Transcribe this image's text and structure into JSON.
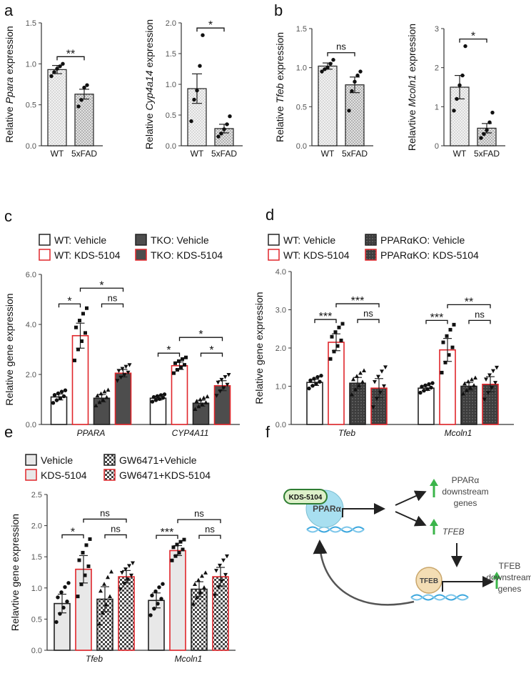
{
  "colors": {
    "red": "#e0262b",
    "green": "#3bb54a",
    "dark": "#4d4d4d",
    "light": "#ececec",
    "white": "#ffffff",
    "dna": "#3aa6dd",
    "tfeb": "#f3ddb4",
    "ppar": "#a8dff0"
  },
  "panels": {
    "a": {
      "label": "a"
    },
    "b": {
      "label": "b"
    },
    "c": {
      "label": "c"
    },
    "d": {
      "label": "d"
    },
    "e": {
      "label": "e"
    },
    "f": {
      "label": "f"
    }
  },
  "legend_c": {
    "items": [
      "WT: Vehicle",
      "TKO: Vehicle",
      "WT: KDS-5104",
      "TKO: KDS-5104"
    ]
  },
  "legend_d": {
    "items": [
      "WT: Vehicle",
      "PPARαKO: Vehicle",
      "WT: KDS-5104",
      "PPARαKO: KDS-5104"
    ]
  },
  "legend_e": {
    "items": [
      "Vehicle",
      "GW6471+Vehicle",
      "KDS-5104",
      "GW6471+KDS-5104"
    ]
  },
  "diagram": {
    "drug_label": "KDS-5104",
    "ppar_label": "PPARα",
    "ppar_targets": "PPARα downstream genes",
    "tfeb_gene": "TFEB",
    "tfeb_label": "TFEB",
    "tfeb_targets": "TFEB downstream genes"
  },
  "chart_data": [
    {
      "id": "a1",
      "type": "bar",
      "panel": "a",
      "ylabel": "Relative Ppara expression",
      "ylabel_prefix": "Relative ",
      "ylabel_gene": "Ppara",
      "ylabel_suffix": " expression",
      "ylim": [
        0,
        1.5
      ],
      "yticks": [
        "0.0",
        "0.5",
        "1.0",
        "1.5"
      ],
      "categories": [
        "WT",
        "5xFAD"
      ],
      "series": [
        {
          "category": "WT",
          "value": 0.93,
          "sem": 0.05,
          "points": [
            0.85,
            0.9,
            0.94,
            0.97,
            1.0
          ]
        },
        {
          "category": "5xFAD",
          "value": 0.63,
          "sem": 0.06,
          "points": [
            0.48,
            0.56,
            0.71,
            0.74
          ]
        }
      ],
      "significance": [
        {
          "groups": [
            0,
            1
          ],
          "label": "**"
        }
      ]
    },
    {
      "id": "a2",
      "type": "bar",
      "panel": "a",
      "ylabel": "Relative Cyp4a14 expression",
      "ylabel_prefix": "Relative ",
      "ylabel_gene": "Cyp4a14",
      "ylabel_suffix": " expression",
      "ylim": [
        0,
        2.0
      ],
      "yticks": [
        "0.0",
        "0.5",
        "1.0",
        "1.5",
        "2.0"
      ],
      "categories": [
        "WT",
        "5xFAD"
      ],
      "series": [
        {
          "category": "WT",
          "value": 0.93,
          "sem": 0.24,
          "points": [
            0.4,
            0.75,
            0.9,
            1.3,
            1.8
          ]
        },
        {
          "category": "5xFAD",
          "value": 0.28,
          "sem": 0.07,
          "points": [
            0.15,
            0.2,
            0.27,
            0.35,
            0.48
          ]
        }
      ],
      "significance": [
        {
          "groups": [
            0,
            1
          ],
          "label": "*"
        }
      ]
    },
    {
      "id": "b1",
      "type": "bar",
      "panel": "b",
      "ylabel": "Relative Tfeb expression",
      "ylabel_prefix": "Relative ",
      "ylabel_gene": "Tfeb",
      "ylabel_suffix": " expression",
      "ylim": [
        0,
        1.5
      ],
      "yticks": [
        "0.0",
        "0.5",
        "1.0",
        "1.5"
      ],
      "categories": [
        "WT",
        "5xFAD"
      ],
      "series": [
        {
          "category": "WT",
          "value": 1.02,
          "sem": 0.04,
          "points": [
            0.95,
            0.98,
            1.0,
            1.05,
            1.1
          ]
        },
        {
          "category": "5xFAD",
          "value": 0.78,
          "sem": 0.1,
          "points": [
            0.45,
            0.7,
            0.82,
            0.9,
            0.95
          ]
        }
      ],
      "significance": [
        {
          "groups": [
            0,
            1
          ],
          "label": "ns"
        }
      ]
    },
    {
      "id": "b2",
      "type": "bar",
      "panel": "b",
      "ylabel": "Relavtive Mcoln1 expression",
      "ylabel_prefix": "Relavtive ",
      "ylabel_gene": "Mcoln1",
      "ylabel_suffix": " expression",
      "ylim": [
        0,
        3
      ],
      "yticks": [
        "0",
        "1",
        "2",
        "3"
      ],
      "categories": [
        "WT",
        "5xFAD"
      ],
      "series": [
        {
          "category": "WT",
          "value": 1.5,
          "sem": 0.3,
          "points": [
            0.9,
            1.2,
            1.55,
            1.8,
            2.55
          ]
        },
        {
          "category": "5xFAD",
          "value": 0.45,
          "sem": 0.12,
          "points": [
            0.2,
            0.3,
            0.4,
            0.6,
            0.85
          ]
        }
      ],
      "significance": [
        {
          "groups": [
            0,
            1
          ],
          "label": "*"
        }
      ]
    },
    {
      "id": "c",
      "type": "bar",
      "panel": "c",
      "ylabel": "Relative gene expression",
      "ylim": [
        0,
        6.0
      ],
      "yticks": [
        "0.0",
        "2.0",
        "4.0",
        "6.0"
      ],
      "categories": [
        "PPARA",
        "CYP4A11"
      ],
      "series": [
        {
          "name": "WT: Vehicle",
          "values": [
            1.1,
            1.05
          ],
          "sem": [
            0.12,
            0.07
          ]
        },
        {
          "name": "WT: KDS-5104",
          "values": [
            3.55,
            2.35
          ],
          "sem": [
            0.5,
            0.15
          ]
        },
        {
          "name": "TKO: Vehicle",
          "values": [
            1.05,
            0.85
          ],
          "sem": [
            0.15,
            0.12
          ]
        },
        {
          "name": "TKO: KDS-5104",
          "values": [
            2.05,
            1.55
          ],
          "sem": [
            0.15,
            0.2
          ]
        }
      ],
      "significance": [
        {
          "category": 0,
          "groups": [
            0,
            1
          ],
          "label": "*"
        },
        {
          "category": 0,
          "groups": [
            2,
            3
          ],
          "label": "ns"
        },
        {
          "category": 0,
          "groups": [
            1,
            3
          ],
          "label": "*"
        },
        {
          "category": 1,
          "groups": [
            0,
            1
          ],
          "label": "*"
        },
        {
          "category": 1,
          "groups": [
            2,
            3
          ],
          "label": "*"
        },
        {
          "category": 1,
          "groups": [
            1,
            3
          ],
          "label": "*"
        }
      ]
    },
    {
      "id": "d",
      "type": "bar",
      "panel": "d",
      "ylabel": "Relative gene expression",
      "ylim": [
        0,
        4.0
      ],
      "yticks": [
        "0.0",
        "1.0",
        "2.0",
        "3.0",
        "4.0"
      ],
      "categories": [
        "Tfeb",
        "Mcoln1"
      ],
      "series": [
        {
          "name": "WT: Vehicle",
          "values": [
            1.1,
            0.95
          ],
          "sem": [
            0.08,
            0.06
          ]
        },
        {
          "name": "WT: KDS-5104",
          "values": [
            2.15,
            1.95
          ],
          "sem": [
            0.22,
            0.3
          ]
        },
        {
          "name": "PPARαKO: Vehicle",
          "values": [
            1.08,
            1.0
          ],
          "sem": [
            0.15,
            0.1
          ]
        },
        {
          "name": "PPARαKO: KDS-5104",
          "values": [
            0.95,
            1.05
          ],
          "sem": [
            0.25,
            0.2
          ]
        }
      ],
      "significance": [
        {
          "category": 0,
          "groups": [
            0,
            1
          ],
          "label": "***"
        },
        {
          "category": 0,
          "groups": [
            2,
            3
          ],
          "label": "ns"
        },
        {
          "category": 0,
          "groups": [
            1,
            3
          ],
          "label": "***"
        },
        {
          "category": 1,
          "groups": [
            0,
            1
          ],
          "label": "***"
        },
        {
          "category": 1,
          "groups": [
            2,
            3
          ],
          "label": "ns"
        },
        {
          "category": 1,
          "groups": [
            1,
            3
          ],
          "label": "**"
        }
      ]
    },
    {
      "id": "e",
      "type": "bar",
      "panel": "e",
      "ylabel": "Relavtive gene expression",
      "ylim": [
        0,
        2.5
      ],
      "yticks": [
        "0.0",
        "0.5",
        "1.0",
        "1.5",
        "2.0",
        "2.5"
      ],
      "categories": [
        "Tfeb",
        "Mcoln1"
      ],
      "series": [
        {
          "name": "Vehicle",
          "values": [
            0.75,
            0.8
          ],
          "sem": [
            0.15,
            0.12
          ]
        },
        {
          "name": "KDS-5104",
          "values": [
            1.3,
            1.6
          ],
          "sem": [
            0.22,
            0.08
          ]
        },
        {
          "name": "GW6471+Vehicle",
          "values": [
            0.82,
            0.98
          ],
          "sem": [
            0.2,
            0.12
          ]
        },
        {
          "name": "GW6471+KDS-5104",
          "values": [
            1.18,
            1.18
          ],
          "sem": [
            0.1,
            0.15
          ]
        }
      ],
      "significance": [
        {
          "category": 0,
          "groups": [
            0,
            1
          ],
          "label": "*"
        },
        {
          "category": 0,
          "groups": [
            2,
            3
          ],
          "label": "ns"
        },
        {
          "category": 0,
          "groups": [
            1,
            3
          ],
          "label": "ns"
        },
        {
          "category": 1,
          "groups": [
            0,
            1
          ],
          "label": "***"
        },
        {
          "category": 1,
          "groups": [
            2,
            3
          ],
          "label": "ns"
        },
        {
          "category": 1,
          "groups": [
            1,
            3
          ],
          "label": "ns"
        }
      ]
    }
  ]
}
